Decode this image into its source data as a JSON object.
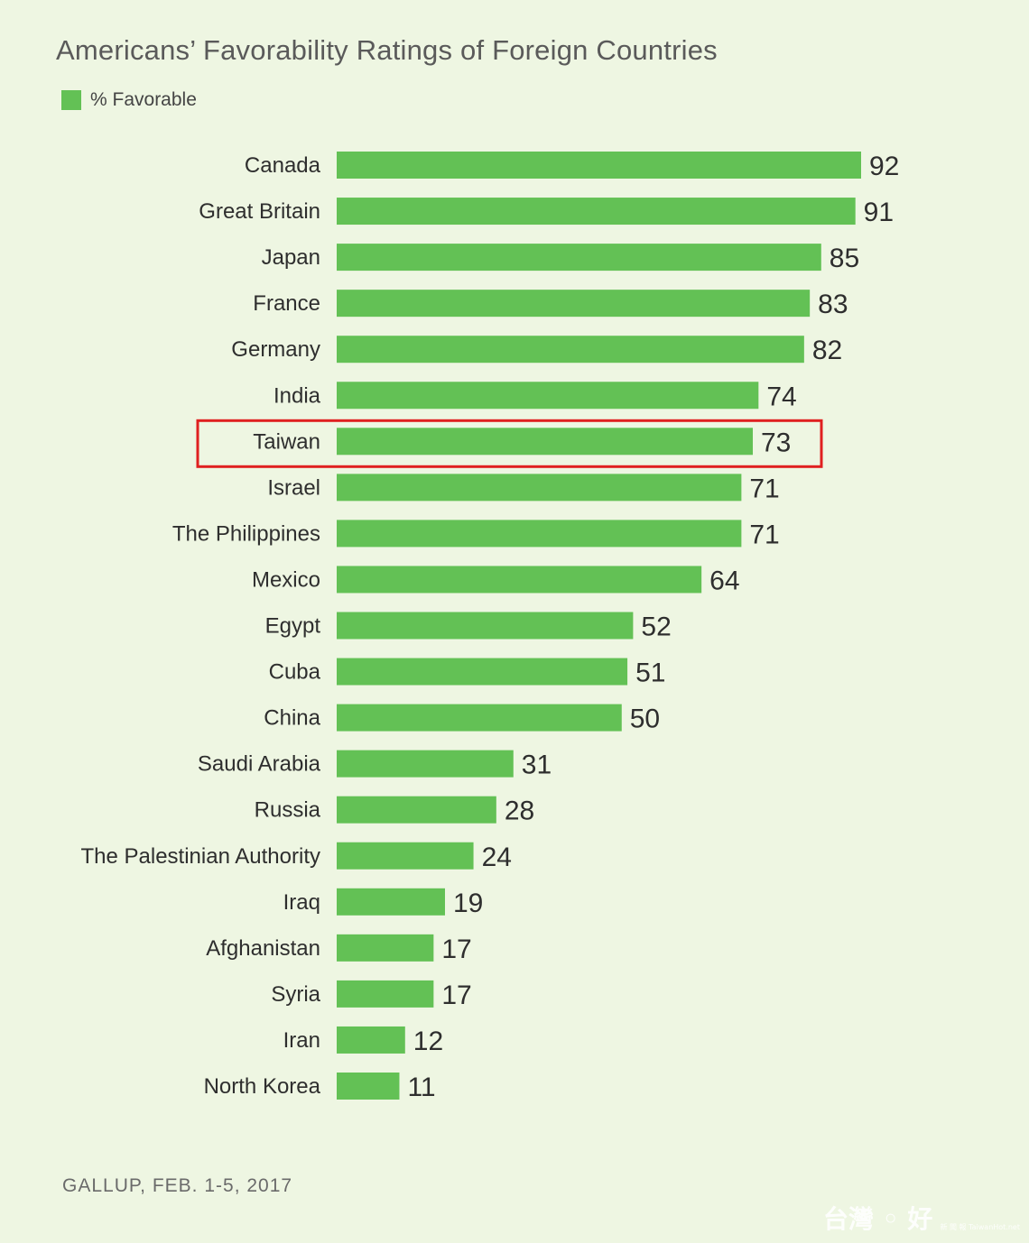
{
  "chart_data": {
    "type": "bar",
    "orientation": "horizontal",
    "title": "Americans’ Favorability Ratings of Foreign Countries",
    "legend": [
      "% Favorable"
    ],
    "legend_placement": "top-left",
    "categories": [
      "Canada",
      "Great Britain",
      "Japan",
      "France",
      "Germany",
      "India",
      "Taiwan",
      "Israel",
      "The Philippines",
      "Mexico",
      "Egypt",
      "Cuba",
      "China",
      "Saudi Arabia",
      "Russia",
      "The Palestinian Authority",
      "Iraq",
      "Afghanistan",
      "Syria",
      "Iran",
      "North Korea"
    ],
    "series": [
      {
        "name": "% Favorable",
        "values": [
          92,
          91,
          85,
          83,
          82,
          74,
          73,
          71,
          71,
          64,
          52,
          51,
          50,
          31,
          28,
          24,
          19,
          17,
          17,
          12,
          11
        ]
      }
    ],
    "highlighted_category": "Taiwan",
    "xlim": [
      0,
      92
    ],
    "grid": false,
    "source": "GALLUP, FEB. 1-5, 2017",
    "colors": {
      "bar": "#63c155",
      "highlight_box": "#e02020",
      "background": "#eef6e2"
    }
  },
  "watermark": {
    "main": "台灣 ◦ 好",
    "sub": "新 聞 報  TaiwanHot.net"
  }
}
